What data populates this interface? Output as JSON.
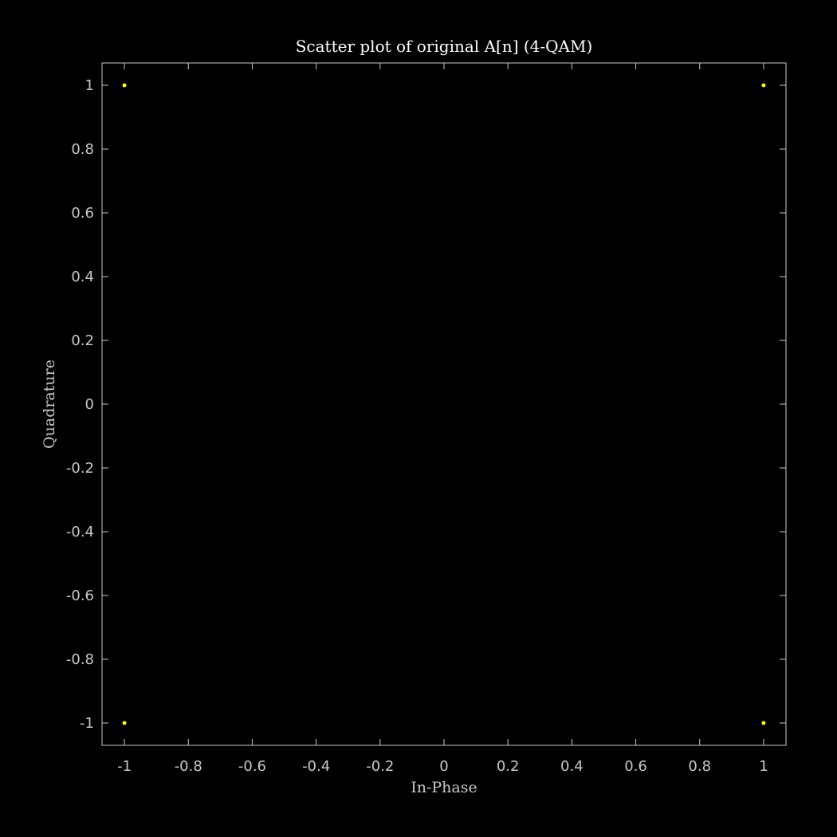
{
  "chart_data": {
    "type": "scatter",
    "title": "Scatter plot of original A[n] (4-QAM)",
    "xlabel": "In-Phase",
    "ylabel": "Quadrature",
    "xlim": [
      -1.07,
      1.07
    ],
    "ylim": [
      -1.07,
      1.07
    ],
    "xticks": [
      "-1",
      "-0.8",
      "-0.6",
      "-0.4",
      "-0.2",
      "0",
      "0.2",
      "0.4",
      "0.6",
      "0.8",
      "1"
    ],
    "yticks": [
      "1",
      "0.8",
      "0.6",
      "0.4",
      "0.2",
      "0",
      "-0.2",
      "-0.4",
      "-0.6",
      "-0.8",
      "-1"
    ],
    "grid": false,
    "series": [
      {
        "color": "#ffff00",
        "points": [
          {
            "x": -1,
            "y": 1
          },
          {
            "x": 1,
            "y": 1
          },
          {
            "x": -1,
            "y": -1
          },
          {
            "x": 1,
            "y": -1
          }
        ]
      }
    ],
    "colors": {
      "background": "#000000",
      "axes": "#c8c8c8",
      "title": "#ffffff"
    }
  }
}
